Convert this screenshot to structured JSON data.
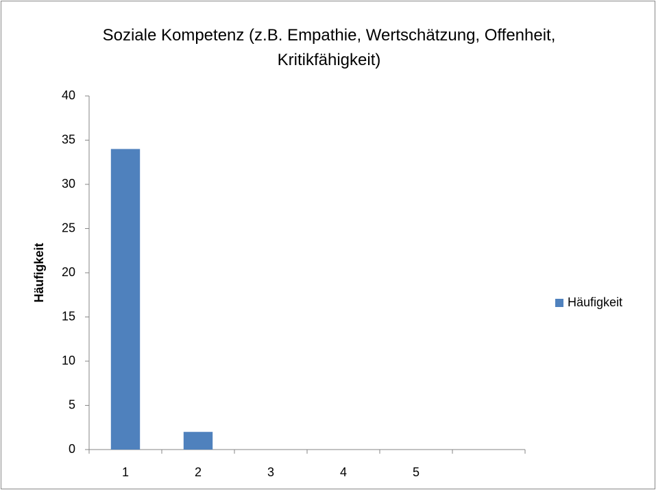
{
  "chart_data": {
    "type": "bar",
    "title": "Soziale Kompetenz (z.B. Empathie, Wertschätzung, Offenheit, Kritikfähigkeit)",
    "y_label": "Häufigkeit",
    "categories": [
      "1",
      "2",
      "3",
      "4",
      "5",
      null
    ],
    "series": [
      {
        "name": "Häufigkeit",
        "color": "#4f81bd",
        "values": [
          34,
          2,
          0,
          0,
          0,
          null
        ]
      }
    ],
    "ylim": [
      0,
      40
    ],
    "yticks": [
      0,
      5,
      10,
      15,
      20,
      25,
      30,
      35,
      40
    ],
    "grid": false,
    "legend": "right"
  }
}
